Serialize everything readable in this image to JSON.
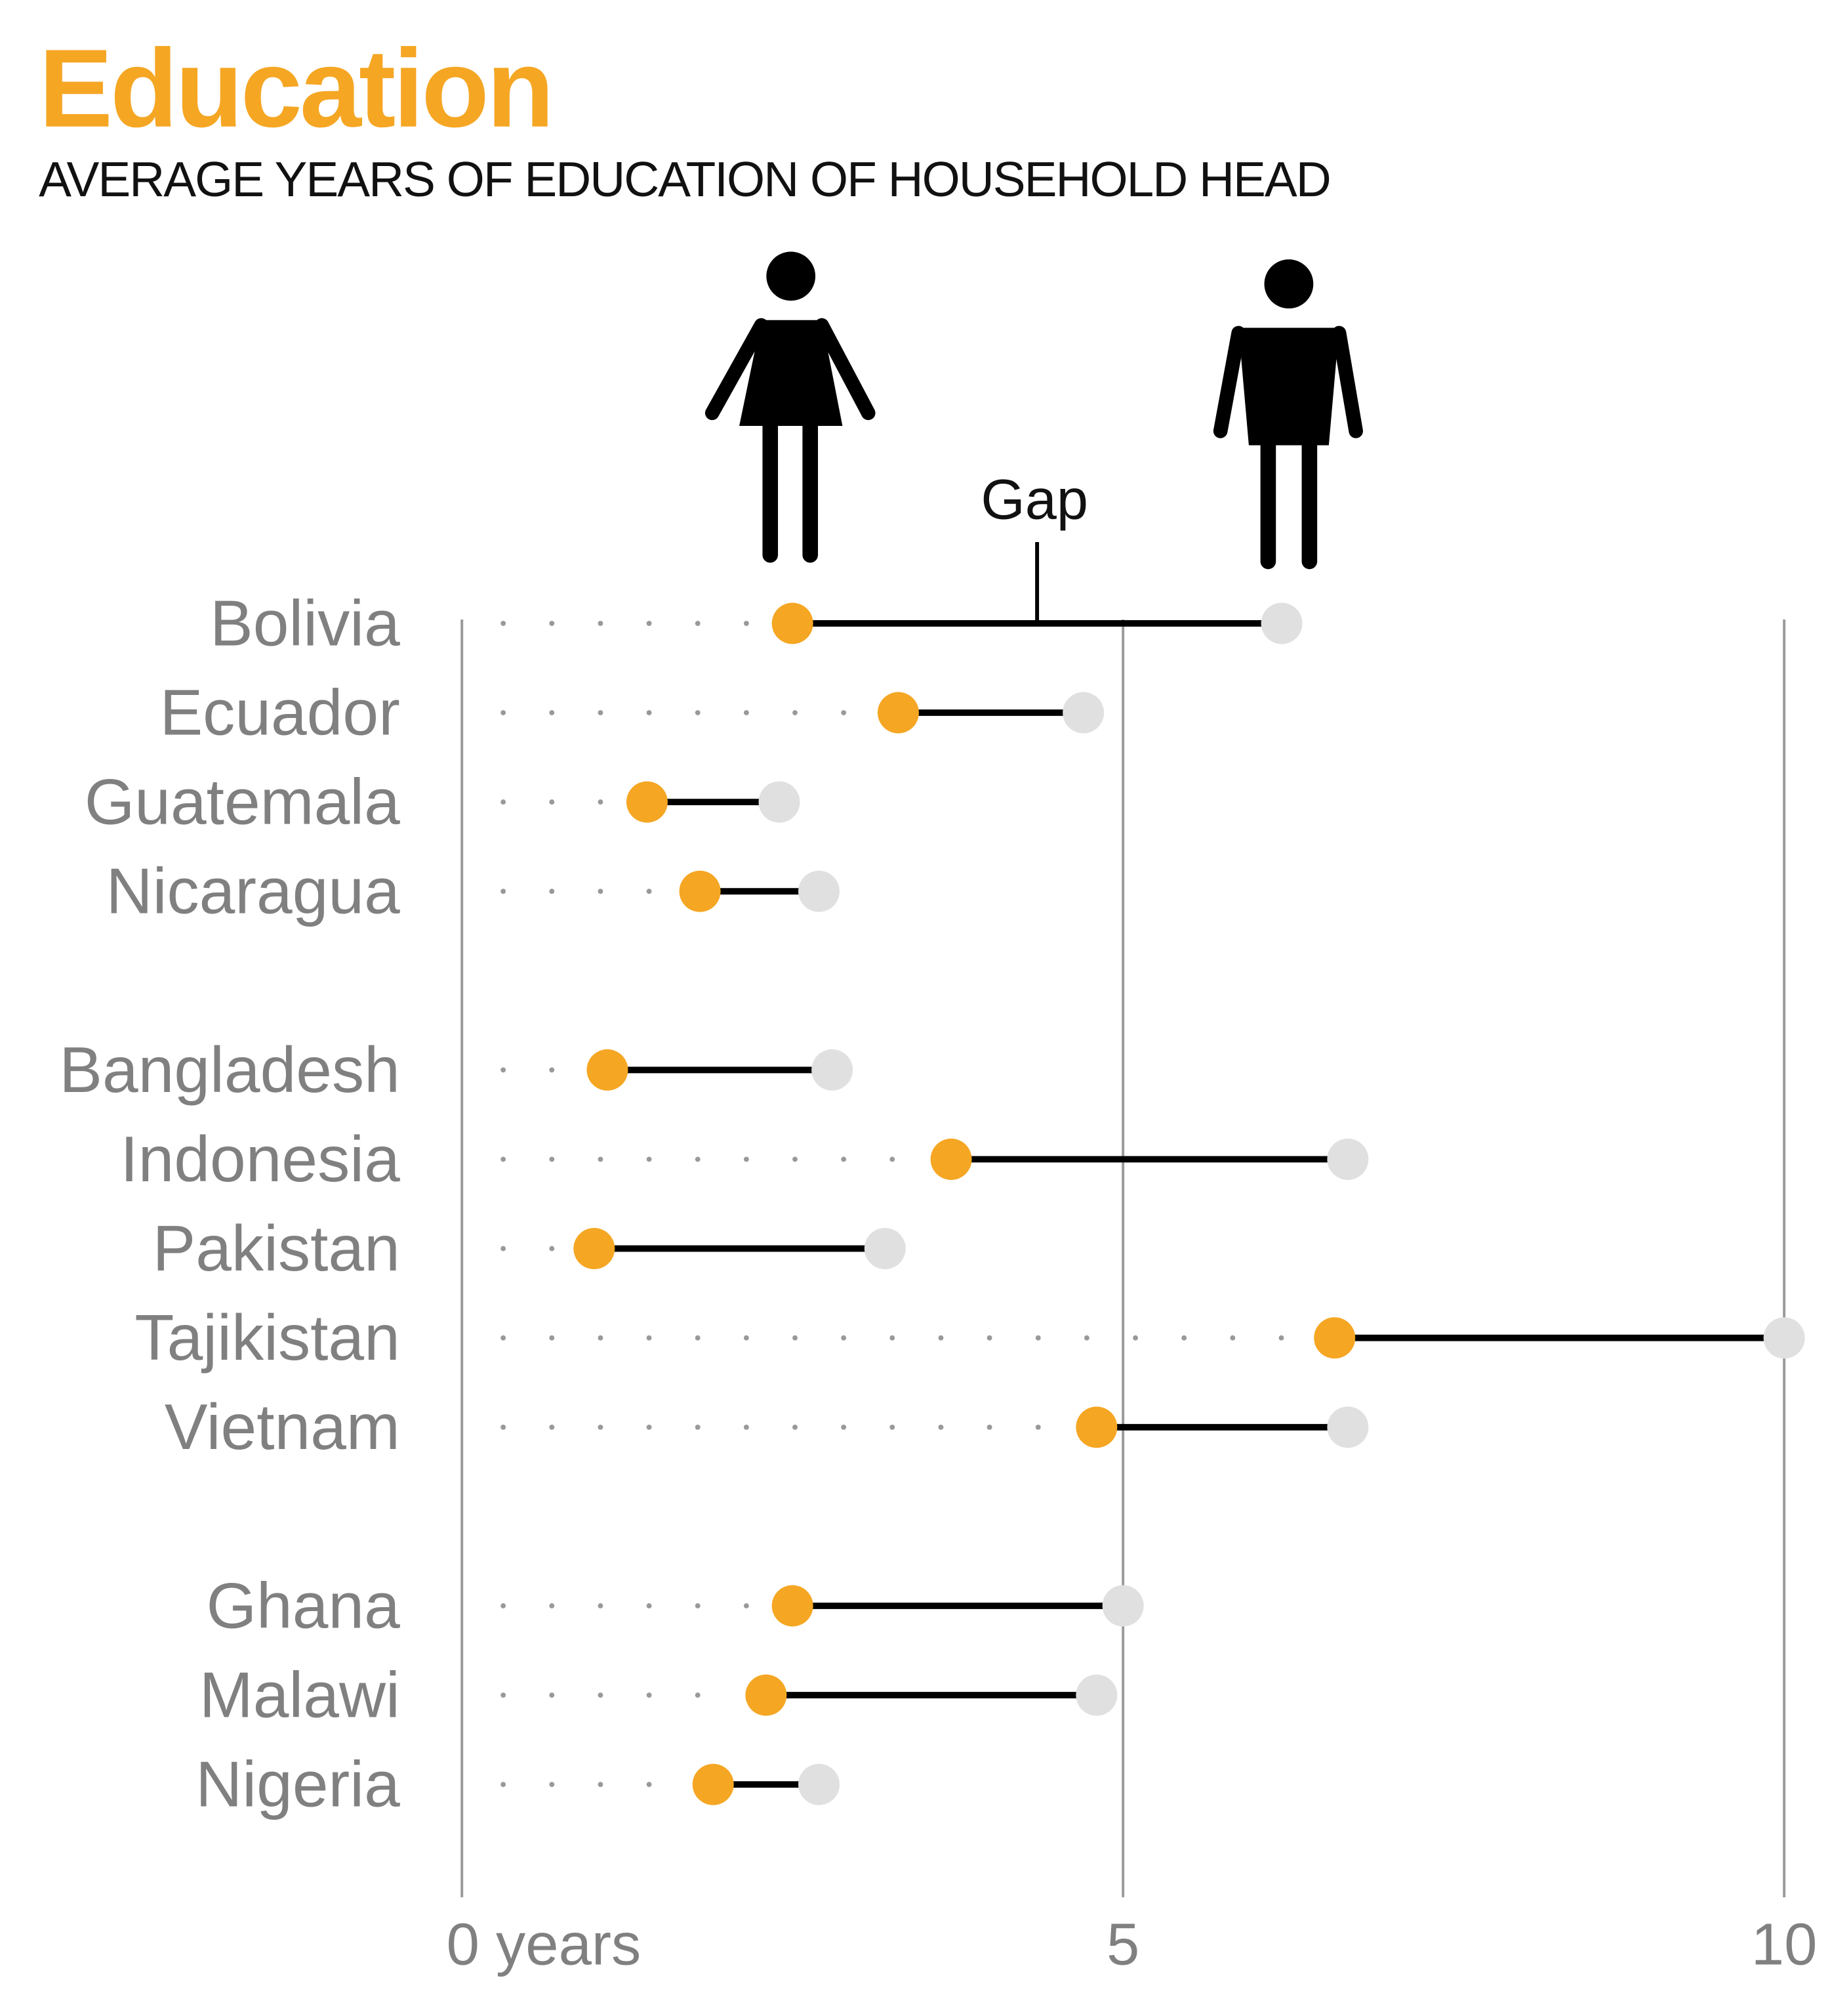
{
  "chart_data": {
    "type": "dumbbell",
    "title": "Education",
    "subtitle": "AVERAGE YEARS OF EDUCATION OF HOUSEHOLD HEAD",
    "annotation": "Gap",
    "xlim": [
      0,
      10
    ],
    "ticks": [
      {
        "value": 0,
        "label": "0 years"
      },
      {
        "value": 5,
        "label": "5"
      },
      {
        "value": 10,
        "label": "10"
      }
    ],
    "series": [
      {
        "key": "female",
        "icon": "female-figure-icon",
        "color": "#f5a623"
      },
      {
        "key": "male",
        "icon": "male-figure-icon",
        "color": "#e0e0e0"
      }
    ],
    "groups": [
      [
        {
          "country": "Bolivia",
          "female": 2.5,
          "male": 6.2
        },
        {
          "country": "Ecuador",
          "female": 3.3,
          "male": 4.7
        },
        {
          "country": "Guatemala",
          "female": 1.4,
          "male": 2.4
        },
        {
          "country": "Nicaragua",
          "female": 1.8,
          "male": 2.7
        }
      ],
      [
        {
          "country": "Bangladesh",
          "female": 1.1,
          "male": 2.8
        },
        {
          "country": "Indonesia",
          "female": 3.7,
          "male": 6.7
        },
        {
          "country": "Pakistan",
          "female": 1.0,
          "male": 3.2
        },
        {
          "country": "Tajikistan",
          "female": 6.6,
          "male": 10.0
        },
        {
          "country": "Vietnam",
          "female": 4.8,
          "male": 6.7
        }
      ],
      [
        {
          "country": "Ghana",
          "female": 2.5,
          "male": 5.0
        },
        {
          "country": "Malawi",
          "female": 2.3,
          "male": 4.8
        },
        {
          "country": "Nigeria",
          "female": 1.9,
          "male": 2.7
        }
      ]
    ]
  }
}
